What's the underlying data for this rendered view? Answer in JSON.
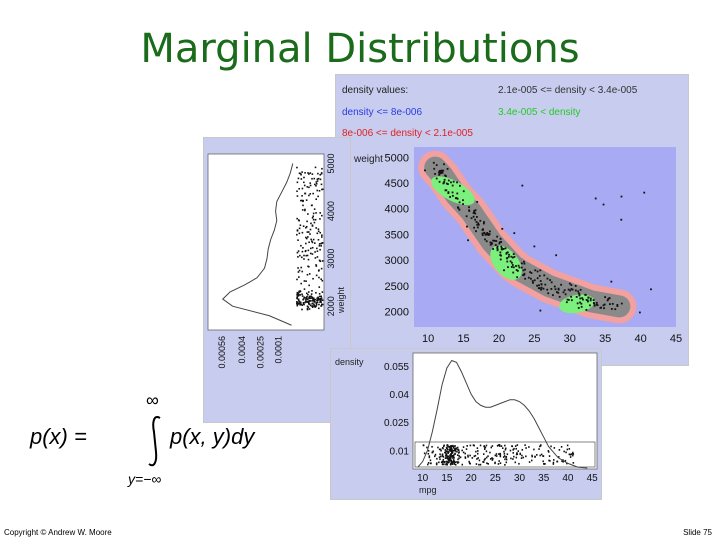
{
  "slide": {
    "title": "Marginal Distributions",
    "copyright": "Copyright © Andrew W. Moore",
    "slide_number": "Slide 75"
  },
  "formula": {
    "lhs": "p(x) =",
    "upper_limit": "∞",
    "lower_limit": "y=−∞",
    "integrand": "p(x, y)dy"
  },
  "colors": {
    "panel_bg": "#c8cdf0",
    "plot_bg": "#a8aaf4",
    "density_low": "#a8aaf4",
    "density_mid_low": "#f2a0a0",
    "density_mid_high": "#8a8a8a",
    "density_high": "#7cf07c",
    "legend_blue": "#2a3ae0",
    "legend_green": "#22cc22",
    "legend_red": "#e02020",
    "title_green": "#1a6b1a"
  },
  "legend": {
    "heading": "density values:",
    "items": [
      {
        "label": "density <= 8e-006",
        "color": "#2a3ae0"
      },
      {
        "label": "8e-006 <= density < 2.1e-005",
        "color": "#e02020"
      },
      {
        "label": "2.1e-005 <= density < 3.4e-005",
        "color": "#333333"
      },
      {
        "label": "3.4e-005 < density",
        "color": "#22cc22"
      }
    ]
  },
  "chart_data": [
    {
      "type": "heatmap",
      "name": "joint-density",
      "xlabel": "mpg",
      "ylabel": "weight",
      "xlim": [
        8,
        45
      ],
      "ylim": [
        1700,
        5200
      ],
      "x_ticks": [
        "10",
        "15",
        "20",
        "25",
        "30",
        "35",
        "40",
        "45"
      ],
      "y_ticks": [
        "2000",
        "2500",
        "3000",
        "3500",
        "4000",
        "4500",
        "5000"
      ],
      "x_tick_values": [
        10,
        15,
        20,
        25,
        30,
        35,
        40,
        45
      ],
      "y_tick_values": [
        2000,
        2500,
        3000,
        3500,
        4000,
        4500,
        5000
      ],
      "ridge": [
        [
          11,
          4800
        ],
        [
          12,
          4650
        ],
        [
          13,
          4450
        ],
        [
          14,
          4250
        ],
        [
          15,
          4100
        ],
        [
          16,
          3950
        ],
        [
          17,
          3750
        ],
        [
          18,
          3550
        ],
        [
          19,
          3350
        ],
        [
          20,
          3200
        ],
        [
          21,
          3050
        ],
        [
          22,
          2900
        ],
        [
          23,
          2800
        ],
        [
          25,
          2650
        ],
        [
          27,
          2500
        ],
        [
          29,
          2400
        ],
        [
          31,
          2300
        ],
        [
          33,
          2200
        ],
        [
          35,
          2150
        ],
        [
          37,
          2100
        ]
      ],
      "high_density_regions": [
        [
          13.5,
          4350
        ],
        [
          21,
          2950
        ],
        [
          31,
          2150
        ]
      ]
    },
    {
      "type": "line",
      "name": "weight-marginal",
      "xlabel": "",
      "ylabel": "weight",
      "x_ticks": [
        "0.00056",
        "0.0004",
        "0.00025",
        "0.0001"
      ],
      "y_ticks": [
        "2000",
        "3000",
        "4000",
        "5000"
      ],
      "x_tick_values": [
        0.00056,
        0.0004,
        0.00025,
        0.0001
      ],
      "y_tick_values": [
        2000,
        3000,
        4000,
        5000
      ],
      "xlim": [
        0.0007,
        0.0
      ],
      "ylim": [
        1500,
        5200
      ],
      "x": [
        1600,
        1800,
        2000,
        2150,
        2300,
        2450,
        2600,
        2800,
        3000,
        3200,
        3400,
        3600,
        3800,
        4000,
        4200,
        4400,
        4600,
        4800,
        5000
      ],
      "y": [
        2e-05,
        0.0002,
        0.0005,
        0.00058,
        0.00052,
        0.0004,
        0.0003,
        0.00024,
        0.00022,
        0.00021,
        0.00019,
        0.00016,
        0.00014,
        0.00015,
        0.00014,
        0.0001,
        6e-05,
        3e-05,
        1e-05
      ]
    },
    {
      "type": "line",
      "name": "mpg-marginal",
      "xlabel": "mpg",
      "ylabel": "density",
      "x_ticks": [
        "10",
        "15",
        "20",
        "25",
        "30",
        "35",
        "40",
        "45"
      ],
      "y_ticks": [
        "0.01",
        "0.025",
        "0.04",
        "0.055"
      ],
      "x_tick_values": [
        10,
        15,
        20,
        25,
        30,
        35,
        40,
        45
      ],
      "y_tick_values": [
        0.01,
        0.025,
        0.04,
        0.055
      ],
      "xlim": [
        8,
        46
      ],
      "ylim": [
        0,
        0.062
      ],
      "x": [
        9,
        10,
        11,
        12,
        13,
        14,
        15,
        16,
        17,
        18,
        19,
        20,
        21,
        22,
        23,
        24,
        25,
        26,
        27,
        28,
        29,
        30,
        31,
        32,
        33,
        34,
        35,
        36,
        38,
        40,
        42,
        44
      ],
      "y": [
        0.001,
        0.004,
        0.01,
        0.02,
        0.032,
        0.045,
        0.054,
        0.058,
        0.057,
        0.052,
        0.046,
        0.04,
        0.036,
        0.034,
        0.033,
        0.033,
        0.034,
        0.035,
        0.036,
        0.037,
        0.037,
        0.036,
        0.034,
        0.031,
        0.027,
        0.022,
        0.017,
        0.012,
        0.006,
        0.003,
        0.001,
        0.0005
      ]
    }
  ]
}
